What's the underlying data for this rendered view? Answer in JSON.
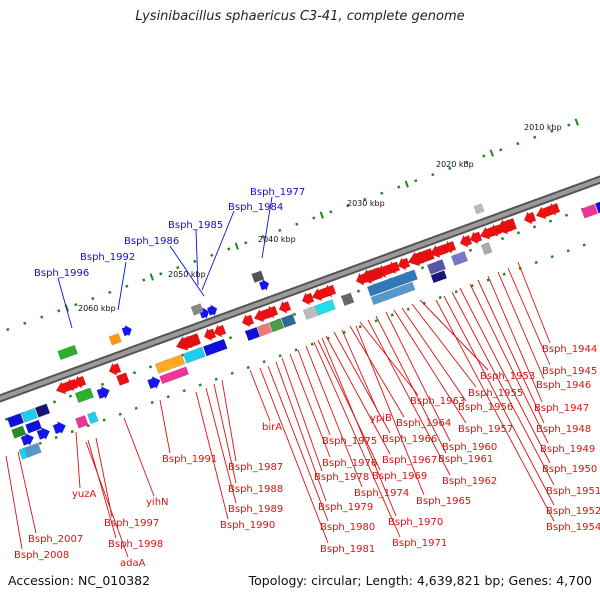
{
  "title": "Lysinibacillus sphaericus C3-41, complete genome",
  "footer": {
    "accession": "Accession: NC_010382",
    "topology": "Topology: circular; Length: 4,639,821 bp; Genes: 4,700"
  },
  "colors": {
    "forward_label": "#1010cc",
    "reverse_label": "#dd1111",
    "backbone": "#777777",
    "tick": "#1a8a1a"
  },
  "ruler_labels": [
    "2010 kbp",
    "2020 kbp",
    "2030 kbp",
    "2040 kbp",
    "2050 kbp",
    "2060 kbp"
  ],
  "gene_labels_forward": [
    "Bsph_1977",
    "Bsph_1984",
    "Bsph_1985",
    "Bsph_1986",
    "Bsph_1992",
    "Bsph_1996"
  ],
  "gene_labels_reverse": [
    "Bsph_1944",
    "Bsph_1945",
    "Bsph_1946",
    "Bsph_1947",
    "Bsph_1948",
    "Bsph_1949",
    "Bsph_1950",
    "Bsph_1951",
    "Bsph_1952",
    "Bsph_1953",
    "Bsph_1954",
    "Bsph_1955",
    "Bsph_1956",
    "Bsph_1957",
    "Bsph_1960",
    "Bsph_1961",
    "Bsph_1962",
    "Bsph_1963",
    "Bsph_1964",
    "Bsph_1965",
    "ypiB",
    "Bsph_1966",
    "Bsph_1967",
    "Bsph_1969",
    "Bsph_1970",
    "Bsph_1971",
    "Bsph_1974",
    "Bsph_1975",
    "Bsph_1976",
    "Bsph_1978",
    "Bsph_1979",
    "Bsph_1980",
    "Bsph_1981",
    "birA",
    "Bsph_1987",
    "Bsph_1988",
    "Bsph_1989",
    "Bsph_1990",
    "Bsph_1991",
    "yihN",
    "yuzA",
    "Bsph_1997",
    "Bsph_1998",
    "adaA",
    "Bsph_2007",
    "Bsph_2008"
  ]
}
